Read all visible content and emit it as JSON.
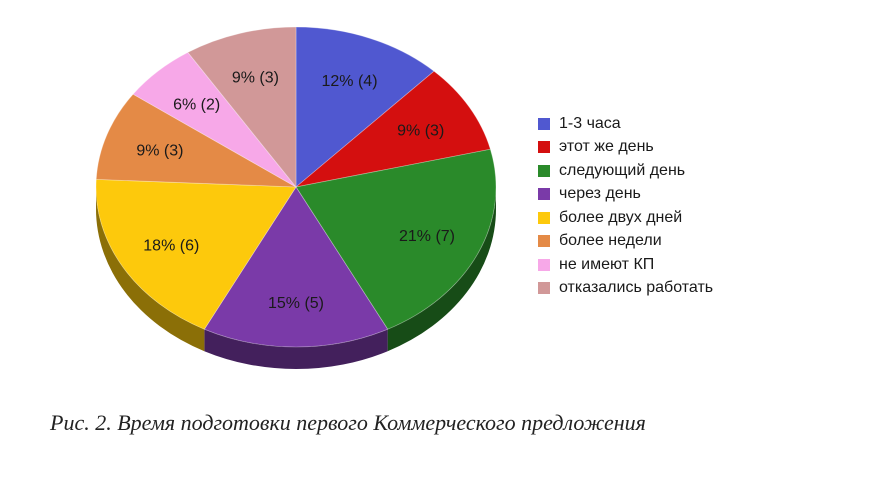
{
  "chart_data": {
    "type": "pie",
    "categories": [
      "1-3 часа",
      "этот же день",
      "следующий день",
      "через день",
      "более двух дней",
      "более недели",
      "не имеют КП",
      "отказались работать"
    ],
    "values": [
      4,
      3,
      7,
      5,
      6,
      3,
      2,
      3
    ],
    "percents": [
      12,
      9,
      21,
      15,
      18,
      9,
      6,
      9
    ],
    "data_labels": [
      "12% (4)",
      "9% (3)",
      "21% (7)",
      "15% (5)",
      "18% (6)",
      "9% (3)",
      "6% (2)",
      "9% (3)"
    ],
    "colors": [
      "#5058d0",
      "#d40f0f",
      "#2a8a2a",
      "#7a3aa8",
      "#fdc90c",
      "#e48a46",
      "#f7a8e8",
      "#d19898"
    ],
    "style": "3d-tilted",
    "legend_position": "right"
  },
  "caption": "Рис. 2. Время подготовки первого Коммерческого предложения"
}
